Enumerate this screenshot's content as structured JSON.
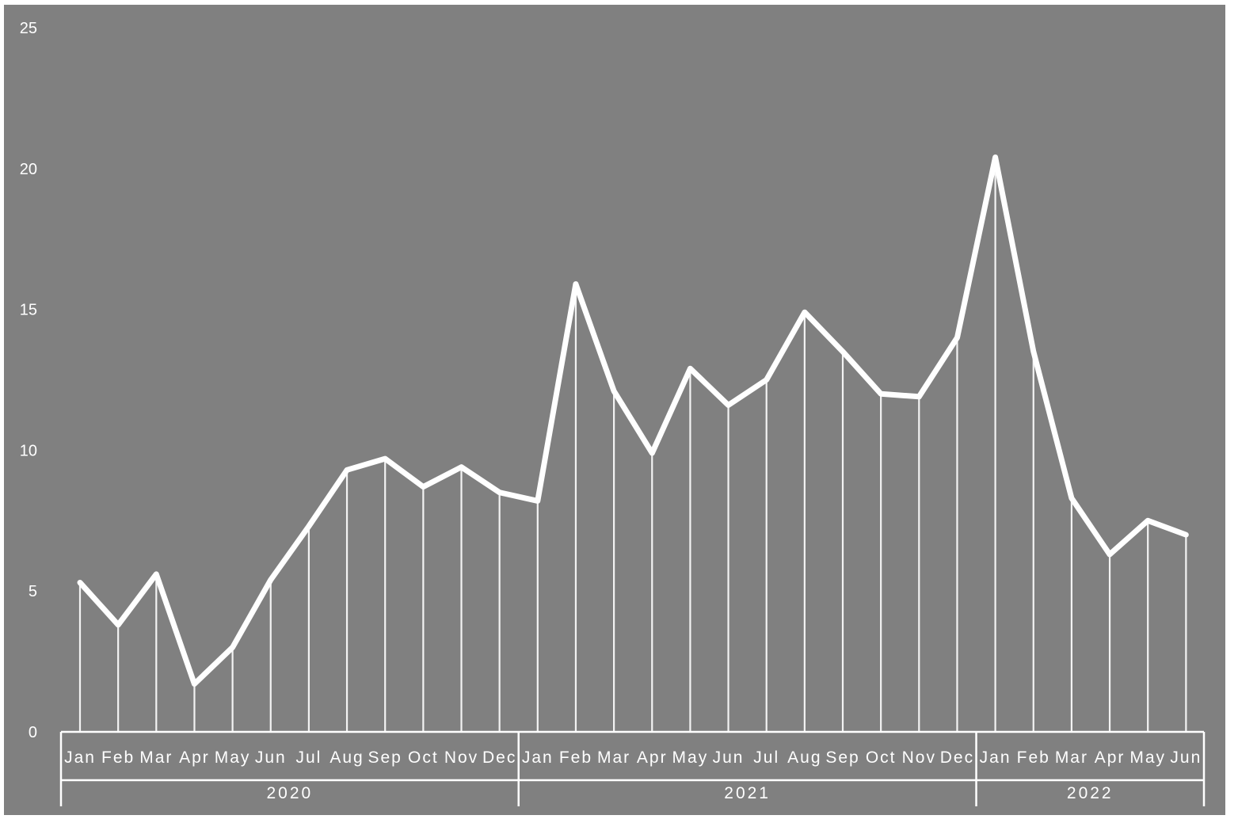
{
  "chart_data": {
    "type": "line",
    "title": "",
    "xlabel": "",
    "ylabel": "",
    "ylim": [
      0,
      25
    ],
    "yticks": [
      "0",
      "5",
      "10",
      "15",
      "20",
      "25"
    ],
    "grid": false,
    "legend": "none",
    "categories": [
      "Jan",
      "Feb",
      "Mar",
      "Apr",
      "May",
      "Jun",
      "Jul",
      "Aug",
      "Sep",
      "Oct",
      "Nov",
      "Dec",
      "Jan",
      "Feb",
      "Mar",
      "Apr",
      "May",
      "Jun",
      "Jul",
      "Aug",
      "Sep",
      "Oct",
      "Nov",
      "Dec",
      "Jan",
      "Feb",
      "Mar",
      "Apr",
      "May",
      "Jun"
    ],
    "groups": [
      {
        "label": "2020",
        "count": 12
      },
      {
        "label": "2021",
        "count": 12
      },
      {
        "label": "2022",
        "count": 6
      }
    ],
    "series": [
      {
        "values": [
          5.3,
          3.8,
          5.6,
          1.7,
          3.0,
          5.4,
          7.3,
          9.3,
          9.7,
          8.7,
          9.4,
          8.5,
          8.2,
          15.9,
          12.1,
          9.9,
          12.9,
          11.6,
          12.5,
          14.9,
          13.5,
          12.0,
          11.9,
          14.0,
          20.4,
          13.5,
          8.3,
          6.3,
          7.5,
          7.0
        ],
        "color": "#ffffff"
      }
    ],
    "colors": {
      "plot_background": "#808080",
      "line": "#ffffff",
      "text": "#ffffff"
    }
  }
}
